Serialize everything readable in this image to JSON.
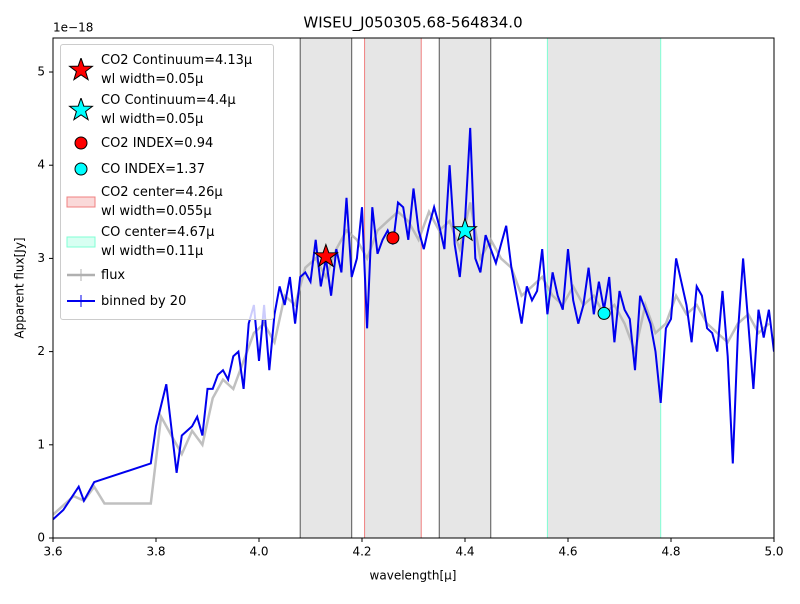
{
  "chart_data": {
    "type": "line",
    "title": "WISEU_J050305.68-564834.0",
    "x_label": "wavelength[μ]",
    "y_label": "Apparent flux[Jy]",
    "y_offset_label": "1e−18",
    "xlim": [
      3.6,
      5.0
    ],
    "ylim": [
      0,
      5.365
    ],
    "xticks": [
      3.6,
      3.8,
      {
        "value": 4.0,
        "label": "4.0"
      },
      4.2,
      4.4,
      4.6,
      4.8,
      {
        "value": 5.0,
        "label": "5.0"
      }
    ],
    "yticks": [
      0,
      1,
      2,
      3,
      4,
      5
    ],
    "legend": "upper left",
    "markers": [
      {
        "name": "CO2 Continuum=4.13μ\nwl width=0.05μ",
        "marker": "star",
        "color": "#ff0000",
        "x": 4.13,
        "y": 3.02,
        "window": [
          4.08,
          4.18
        ]
      },
      {
        "name": "CO Continuum=4.4μ\nwl width=0.05μ",
        "marker": "star",
        "color": "#00ffff",
        "x": 4.4,
        "y": 3.3,
        "window": [
          4.35,
          4.45
        ]
      },
      {
        "name": "CO2 INDEX=0.94",
        "marker": "circle",
        "color": "#ff0000",
        "x": 4.26,
        "y": 3.22
      },
      {
        "name": "CO  INDEX=1.37",
        "marker": "circle",
        "color": "#00ffff",
        "x": 4.67,
        "y": 2.41
      }
    ],
    "spans": [
      {
        "name": "CO2 center=4.26μ\nwl width=0.055μ",
        "color": "#f08080",
        "xmin": 4.205,
        "xmax": 4.315
      },
      {
        "name": "CO center=4.67μ\nwl width=0.11μ",
        "color": "#7fffd4",
        "xmin": 4.56,
        "xmax": 4.78
      }
    ],
    "series": [
      {
        "name": "flux",
        "color": "#b0b0b0",
        "x": [
          3.6,
          3.62,
          3.64,
          3.66,
          3.68,
          3.7,
          3.79,
          3.81,
          3.83,
          3.85,
          3.87,
          3.89,
          3.91,
          3.93,
          3.95,
          3.97,
          3.99,
          4.01,
          4.03,
          4.05,
          4.07,
          4.09,
          4.11,
          4.13,
          4.15,
          4.17,
          4.19,
          4.21,
          4.23,
          4.25,
          4.27,
          4.29,
          4.31,
          4.33,
          4.35,
          4.37,
          4.39,
          4.41,
          4.43,
          4.45,
          4.47,
          4.49,
          4.51,
          4.53,
          4.55,
          4.57,
          4.59,
          4.61,
          4.63,
          4.65,
          4.67,
          4.69,
          4.71,
          4.73,
          4.75,
          4.77,
          4.79,
          4.81,
          4.83,
          4.85,
          4.87,
          4.89,
          4.91,
          4.93,
          4.95,
          4.97,
          4.99
        ],
        "values": [
          0.25,
          0.35,
          0.45,
          0.4,
          0.55,
          0.37,
          0.37,
          1.3,
          1.1,
          0.9,
          1.15,
          1.0,
          1.5,
          1.7,
          1.6,
          1.9,
          2.2,
          2.3,
          2.1,
          2.6,
          2.5,
          2.9,
          3.0,
          2.8,
          3.1,
          3.3,
          3.2,
          3.0,
          3.3,
          3.4,
          3.5,
          3.4,
          3.2,
          3.5,
          3.3,
          3.4,
          3.1,
          3.6,
          3.0,
          3.2,
          3.0,
          2.9,
          2.6,
          2.7,
          2.8,
          2.6,
          2.5,
          2.7,
          2.5,
          2.6,
          2.4,
          2.5,
          2.3,
          2.0,
          2.5,
          2.2,
          2.3,
          2.6,
          2.4,
          2.5,
          2.3,
          2.2,
          2.1,
          2.3,
          2.4,
          2.2,
          2.3
        ]
      },
      {
        "name": "binned by 20",
        "color": "#0000ee",
        "x": [
          3.6,
          3.62,
          3.65,
          3.66,
          3.68,
          3.79,
          3.8,
          3.82,
          3.84,
          3.85,
          3.87,
          3.88,
          3.89,
          3.9,
          3.91,
          3.92,
          3.93,
          3.94,
          3.95,
          3.96,
          3.97,
          3.98,
          3.99,
          4.0,
          4.01,
          4.02,
          4.03,
          4.04,
          4.05,
          4.06,
          4.07,
          4.08,
          4.09,
          4.1,
          4.11,
          4.12,
          4.13,
          4.14,
          4.15,
          4.16,
          4.17,
          4.18,
          4.19,
          4.2,
          4.21,
          4.22,
          4.23,
          4.24,
          4.25,
          4.26,
          4.27,
          4.28,
          4.29,
          4.3,
          4.31,
          4.32,
          4.33,
          4.34,
          4.35,
          4.36,
          4.37,
          4.38,
          4.39,
          4.4,
          4.41,
          4.42,
          4.43,
          4.44,
          4.45,
          4.46,
          4.47,
          4.48,
          4.49,
          4.5,
          4.51,
          4.52,
          4.53,
          4.54,
          4.55,
          4.56,
          4.57,
          4.58,
          4.59,
          4.6,
          4.61,
          4.62,
          4.63,
          4.64,
          4.65,
          4.66,
          4.67,
          4.68,
          4.69,
          4.7,
          4.71,
          4.72,
          4.73,
          4.74,
          4.75,
          4.76,
          4.77,
          4.78,
          4.79,
          4.8,
          4.81,
          4.82,
          4.83,
          4.84,
          4.85,
          4.86,
          4.87,
          4.88,
          4.89,
          4.9,
          4.91,
          4.92,
          4.93,
          4.94,
          4.95,
          4.96,
          4.97,
          4.98,
          4.99,
          5.0
        ],
        "values": [
          0.2,
          0.3,
          0.55,
          0.4,
          0.6,
          0.8,
          1.2,
          1.65,
          0.7,
          1.1,
          1.2,
          1.3,
          1.1,
          1.6,
          1.6,
          1.75,
          1.8,
          1.7,
          1.95,
          2.0,
          1.6,
          2.3,
          2.5,
          1.9,
          2.5,
          1.8,
          2.4,
          2.7,
          2.5,
          2.8,
          2.3,
          2.8,
          2.85,
          2.75,
          3.2,
          2.7,
          3.0,
          2.6,
          3.1,
          2.85,
          3.65,
          2.8,
          3.0,
          3.55,
          2.25,
          3.55,
          3.05,
          3.2,
          3.3,
          3.15,
          3.6,
          3.55,
          3.2,
          3.75,
          3.3,
          3.1,
          3.35,
          3.55,
          3.35,
          3.1,
          4.0,
          3.15,
          2.8,
          3.4,
          4.4,
          3.0,
          2.85,
          3.25,
          3.1,
          2.95,
          3.15,
          3.35,
          2.9,
          2.6,
          2.3,
          2.7,
          2.55,
          2.65,
          3.1,
          2.4,
          2.85,
          2.6,
          2.45,
          3.1,
          2.55,
          2.3,
          2.5,
          2.9,
          2.4,
          2.75,
          2.45,
          2.8,
          2.1,
          2.65,
          2.45,
          2.35,
          1.8,
          2.6,
          2.45,
          2.3,
          2.0,
          1.45,
          2.25,
          2.35,
          3.0,
          2.75,
          2.5,
          2.1,
          2.7,
          2.6,
          2.25,
          2.2,
          2.0,
          2.65,
          1.95,
          0.8,
          2.2,
          3.0,
          2.3,
          1.6,
          2.45,
          2.15,
          2.45,
          2.0
        ]
      }
    ]
  }
}
